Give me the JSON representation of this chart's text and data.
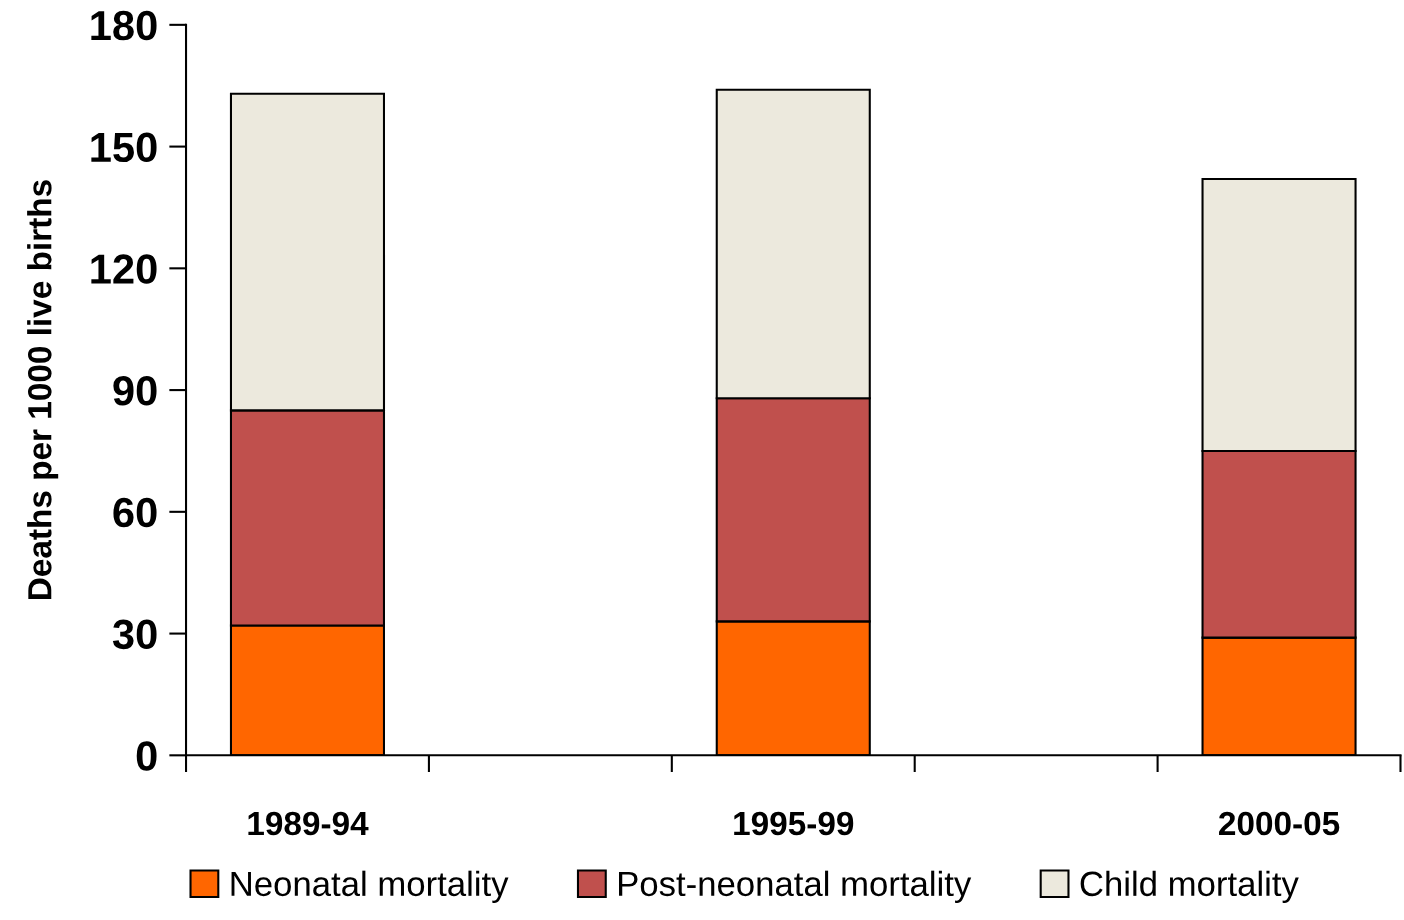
{
  "chart_data": {
    "type": "bar",
    "stacked": true,
    "ylabel": "Deaths per 1000 live births",
    "categories": [
      "1989-94",
      null,
      "1995-99",
      null,
      "2000-05"
    ],
    "series": [
      {
        "name": "Neonatal mortality",
        "color": "#ff6600",
        "values": [
          32,
          null,
          33,
          null,
          29
        ]
      },
      {
        "name": "Post-neonatal mortality",
        "color": "#c0504d",
        "values": [
          53,
          null,
          55,
          null,
          46
        ]
      },
      {
        "name": "Child mortality",
        "color": "#ece9dd",
        "values": [
          78,
          null,
          76,
          null,
          67
        ]
      }
    ],
    "ylim": [
      0,
      180
    ],
    "yticks": [
      0,
      30,
      60,
      90,
      120,
      150,
      180
    ],
    "grid": false,
    "legend": "bottom"
  }
}
